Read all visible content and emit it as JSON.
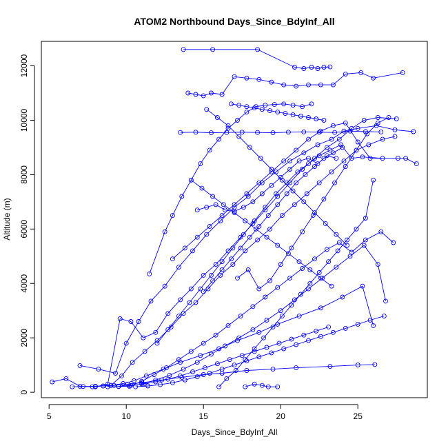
{
  "chart_data": {
    "type": "scatter",
    "title": "ATOM2 Northbound Days_Since_BdyInf_All",
    "xlabel": "Days_Since_BdyInf_All",
    "ylabel": "Altitude (m)",
    "xlim": [
      4.5,
      29.5
    ],
    "ylim": [
      -200,
      12900
    ],
    "x_ticks": [
      5,
      10,
      15,
      20,
      25
    ],
    "y_ticks": [
      0,
      2000,
      4000,
      6000,
      8000,
      10000,
      12000
    ],
    "grid": false,
    "legend": "none",
    "series_color": "#0000ff",
    "mode": "lines+markers",
    "series": [
      {
        "x": [
          5.2,
          6.1,
          7.0,
          7.8,
          8.5,
          9.2,
          10.1,
          11.0,
          12.3,
          13.6,
          15.0,
          16.2,
          17.8,
          19.5,
          21.0,
          23.2,
          25.0,
          26.1
        ],
        "y": [
          380,
          500,
          220,
          200,
          230,
          250,
          300,
          350,
          450,
          550,
          650,
          700,
          800,
          850,
          900,
          950,
          1000,
          1020
        ]
      },
      {
        "x": [
          6.5,
          7.2,
          8.0,
          9.0,
          9.8,
          10.5,
          11.3,
          12.4,
          13.5,
          14.8,
          16.0,
          17.2,
          18.6,
          19.8,
          21.2,
          22.6,
          24.0,
          25.3,
          26.0
        ],
        "y": [
          200,
          210,
          220,
          250,
          320,
          420,
          600,
          850,
          1100,
          1350,
          1600,
          1900,
          2200,
          2500,
          2800,
          3100,
          3500,
          3900,
          2450
        ]
      },
      {
        "x": [
          7.0,
          8.2,
          9.3,
          10.0,
          10.8,
          11.6,
          12.5,
          13.4,
          14.3,
          15.2,
          16.1,
          17.0,
          17.9,
          18.8,
          19.7,
          20.6,
          21.5,
          22.4,
          23.3,
          24.1,
          25.0,
          26.2,
          27.4,
          28.6
        ],
        "y": [
          980,
          850,
          700,
          1800,
          2600,
          3350,
          3900,
          4600,
          5200,
          5800,
          6300,
          6800,
          7200,
          7700,
          8100,
          8500,
          8800,
          9100,
          9300,
          9600,
          9700,
          9800,
          9650,
          9580
        ]
      },
      {
        "x": [
          8.0,
          8.8,
          9.6,
          10.3,
          11.1,
          11.9,
          12.7,
          13.5,
          14.2,
          15.0,
          15.8,
          16.6,
          17.4,
          18.2,
          19.0,
          19.8,
          20.6,
          21.4,
          22.2,
          23.0,
          23.8,
          24.6,
          25.4,
          26.3,
          27.5
        ],
        "y": [
          200,
          300,
          2700,
          2600,
          2000,
          2200,
          2900,
          3400,
          3800,
          4300,
          4700,
          5200,
          5700,
          6200,
          6700,
          7200,
          7700,
          8200,
          8600,
          9000,
          9300,
          9700,
          10000,
          10100,
          10050
        ]
      },
      {
        "x": [
          9.0,
          9.7,
          10.4,
          11.2,
          12.0,
          12.9,
          13.7,
          14.5,
          15.3,
          16.1,
          16.9,
          17.7,
          18.5,
          19.3,
          20.1,
          20.9,
          21.7,
          22.5,
          23.3,
          24.1,
          24.9,
          25.7,
          26.6,
          27.4
        ],
        "y": [
          250,
          600,
          1100,
          1500,
          1900,
          2400,
          2900,
          3300,
          3800,
          4300,
          4700,
          5200,
          5600,
          6000,
          6500,
          6900,
          7300,
          7700,
          8100,
          8500,
          8900,
          9100,
          9300,
          9400
        ]
      },
      {
        "x": [
          11.5,
          12.5,
          13.0,
          13.6,
          14.2,
          14.8,
          15.4,
          16.0,
          16.6,
          17.2,
          17.8,
          18.4,
          19.0,
          19.6,
          20.2,
          20.8,
          21.4,
          22.0
        ],
        "y": [
          4350,
          5900,
          6500,
          7200,
          7800,
          8400,
          8900,
          9300,
          9700,
          10000,
          10300,
          10500,
          10550,
          10580,
          10600,
          10550,
          10500,
          10600
        ]
      },
      {
        "x": [
          13.7,
          15.6,
          18.5,
          20.9,
          21.5,
          22.0,
          22.4,
          22.8,
          23.2
        ],
        "y": [
          12600,
          12600,
          12600,
          11950,
          11900,
          11950,
          11900,
          11950,
          11960
        ]
      },
      {
        "x": [
          14.0,
          14.5,
          15.0,
          15.5,
          16.2,
          17.0,
          17.8,
          18.6,
          19.4,
          20.2,
          21.0,
          21.8,
          22.6,
          23.4,
          24.2,
          25.2,
          26.0,
          27.9
        ],
        "y": [
          11000,
          10950,
          10900,
          11000,
          10950,
          11600,
          11550,
          11500,
          11400,
          11300,
          11250,
          11300,
          11300,
          11300,
          11700,
          11750,
          11550,
          11750
        ]
      },
      {
        "x": [
          13.5,
          14.5,
          15.5,
          16.5,
          17.5,
          18.5,
          19.5,
          20.5,
          21.5,
          22.5,
          23.5,
          24.5,
          25.5,
          26.5
        ],
        "y": [
          9550,
          9560,
          9540,
          9550,
          9560,
          9550,
          9540,
          9560,
          9570,
          9560,
          9550,
          9600,
          9580,
          9570
        ]
      },
      {
        "x": [
          8.8,
          9.5,
          10.2,
          11.0,
          11.8,
          12.6,
          13.4,
          14.2,
          15.0,
          15.8,
          16.6,
          17.4,
          18.2,
          19.0,
          19.8,
          20.6,
          21.4,
          22.2,
          23.0,
          23.8,
          24.6,
          25.5,
          26.5,
          27.3
        ],
        "y": [
          200,
          210,
          220,
          400,
          650,
          900,
          1200,
          1500,
          1800,
          2100,
          2450,
          2800,
          3150,
          3500,
          3850,
          4200,
          4550,
          4900,
          5250,
          5500,
          5150,
          5600,
          5900,
          5500
        ]
      },
      {
        "x": [
          10.2,
          11.0,
          11.9,
          12.8,
          13.7,
          14.6,
          15.5,
          16.4,
          17.3,
          18.2,
          19.1,
          20.0,
          20.9,
          21.8,
          22.7,
          23.6,
          24.5,
          25.4,
          26.3,
          26.8
        ],
        "y": [
          230,
          300,
          450,
          620,
          850,
          1100,
          1400,
          1700,
          2000,
          2300,
          2650,
          3000,
          3400,
          3800,
          4200,
          4600,
          5000,
          5400,
          4700,
          3350
        ]
      },
      {
        "x": [
          14.6,
          15.2,
          15.8,
          16.4,
          17.0,
          17.6,
          18.2,
          18.8,
          19.4,
          20.0,
          20.6,
          21.2,
          21.8,
          22.4,
          23.0,
          23.6
        ],
        "y": [
          6700,
          6800,
          6900,
          6700,
          6650,
          6800,
          7000,
          7300,
          7600,
          7900,
          8200,
          8500,
          8600,
          8400,
          8700,
          8600
        ]
      },
      {
        "x": [
          15.0,
          15.6,
          16.2,
          16.8,
          17.4,
          18.0,
          18.6,
          19.2,
          19.8,
          20.4,
          21.0,
          21.6,
          22.2,
          22.8,
          23.4,
          24.0
        ],
        "y": [
          3700,
          4100,
          4500,
          4900,
          5300,
          5700,
          6100,
          6500,
          6900,
          7300,
          7700,
          8000,
          8300,
          8600,
          8800,
          9000
        ]
      },
      {
        "x": [
          16.0,
          16.5,
          17.1,
          17.7,
          18.3,
          18.9,
          19.5,
          20.1,
          20.7,
          21.3,
          21.9,
          22.5,
          23.1,
          23.7,
          24.3,
          24.9,
          25.5,
          26.0
        ],
        "y": [
          200,
          500,
          800,
          1200,
          1600,
          2000,
          2400,
          2800,
          3200,
          3600,
          4000,
          4400,
          4800,
          5200,
          5600,
          6000,
          6400,
          7800
        ]
      },
      {
        "x": [
          17.7,
          18.3,
          18.8,
          19.2,
          19.8
        ],
        "y": [
          200,
          300,
          250,
          200,
          200
        ]
      },
      {
        "x": [
          12.0,
          12.7,
          13.4,
          14.1,
          14.8,
          15.5,
          16.2,
          16.9,
          17.6,
          18.3,
          19.0,
          19.7,
          20.4,
          21.1,
          21.8,
          22.5,
          23.2,
          23.9,
          24.6,
          25.3,
          26.6
        ],
        "y": [
          1800,
          2300,
          2800,
          3300,
          3800,
          4300,
          4800,
          5300,
          5800,
          6300,
          6800,
          7300,
          7700,
          8100,
          8400,
          8700,
          8900,
          9100,
          8600,
          8650,
          8600
        ]
      },
      {
        "x": [
          13.0,
          13.8,
          14.6,
          15.4,
          16.2,
          17.0,
          17.8,
          18.6,
          19.4,
          20.2,
          21.0,
          21.8,
          22.6,
          23.4,
          24.2,
          25.0,
          25.8,
          27.6,
          28.1,
          28.8
        ],
        "y": [
          4900,
          5300,
          5700,
          6100,
          6500,
          6900,
          7300,
          7700,
          8100,
          8500,
          8900,
          9300,
          9600,
          9800,
          9900,
          9200,
          8600,
          8600,
          8600,
          8400
        ]
      },
      {
        "x": [
          14.2,
          14.9,
          15.6,
          16.3,
          17.0,
          17.7,
          18.4,
          19.1,
          19.8,
          20.5,
          21.2,
          21.9,
          22.6,
          23.3
        ],
        "y": [
          7800,
          7500,
          7200,
          6900,
          6600,
          6300,
          6000,
          5700,
          5400,
          5100,
          4800,
          4500,
          4200,
          3900
        ]
      },
      {
        "x": [
          15.2,
          15.9,
          16.6,
          17.3,
          18.0,
          18.7,
          19.4,
          20.1,
          20.8,
          21.5,
          22.2,
          22.9,
          23.6,
          24.3
        ],
        "y": [
          10400,
          10100,
          9800,
          9400,
          9000,
          8600,
          8200,
          7800,
          7400,
          7000,
          6600,
          6200,
          5800,
          5400
        ]
      },
      {
        "x": [
          9.5,
          10.3,
          11.1,
          11.9,
          12.7,
          13.5,
          14.3,
          15.1,
          15.9,
          16.7,
          17.5,
          18.3,
          19.1,
          19.9,
          20.7,
          21.5,
          22.3,
          23.1
        ],
        "y": [
          220,
          250,
          300,
          380,
          480,
          600,
          750,
          900,
          1050,
          1200,
          1350,
          1500,
          1650,
          1800,
          1950,
          2100,
          2250,
          2400
        ]
      },
      {
        "x": [
          16.8,
          17.3,
          17.8,
          18.3,
          18.8,
          19.3,
          19.8,
          20.3,
          20.8,
          21.3,
          21.8,
          22.3,
          22.8
        ],
        "y": [
          10600,
          10550,
          10500,
          10450,
          10400,
          10350,
          10300,
          10250,
          10200,
          10150,
          10100,
          10050,
          10000
        ]
      },
      {
        "x": [
          17.2,
          17.9,
          18.6,
          19.3,
          20.0,
          20.7,
          21.4,
          22.1,
          22.8,
          23.5,
          24.2,
          24.9,
          25.6,
          26.3,
          27.0
        ],
        "y": [
          4200,
          4500,
          3800,
          4100,
          4700,
          5300,
          5900,
          6500,
          7100,
          7700,
          8300,
          8900,
          9500,
          9900,
          10100
        ]
      },
      {
        "x": [
          10.6,
          11.4,
          12.2,
          13.0,
          13.8,
          14.6,
          15.4,
          16.2,
          17.0,
          17.8,
          18.6,
          19.4,
          20.2,
          21.0,
          21.8,
          22.6,
          23.4,
          24.2,
          25.0,
          25.8,
          26.7
        ],
        "y": [
          200,
          230,
          280,
          350,
          450,
          570,
          700,
          850,
          1000,
          1150,
          1300,
          1450,
          1600,
          1750,
          1900,
          2050,
          2200,
          2350,
          2500,
          2650,
          2800
        ]
      }
    ]
  }
}
